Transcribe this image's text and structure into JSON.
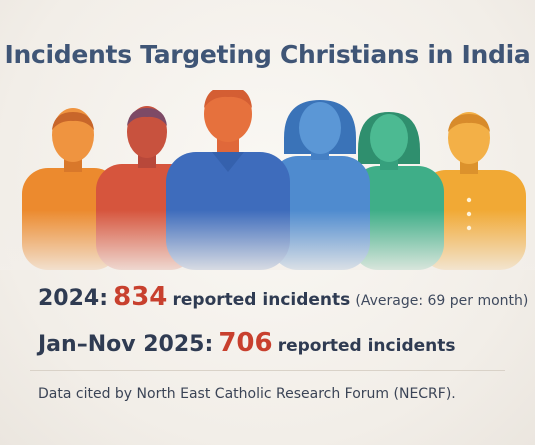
{
  "title": "Incidents Targeting Christians in India",
  "stats": [
    {
      "label": "2024:",
      "value": "834",
      "description": "reported incidents",
      "note": "(Average: 69 per month)"
    },
    {
      "label": "Jan–Nov 2025:",
      "value": "706",
      "description": "reported incidents",
      "note": ""
    }
  ],
  "source": "Data cited by North East Catholic Research Forum (NECRF).",
  "figures": [
    {
      "name": "orange-person",
      "color": "#ee8a2c"
    },
    {
      "name": "red-person",
      "color": "#d9543c"
    },
    {
      "name": "blue-person",
      "color": "#3f6fbf"
    },
    {
      "name": "light-blue-person",
      "color": "#4f8ccf"
    },
    {
      "name": "green-person",
      "color": "#3fae86"
    },
    {
      "name": "yellow-person",
      "color": "#f0a830"
    }
  ]
}
